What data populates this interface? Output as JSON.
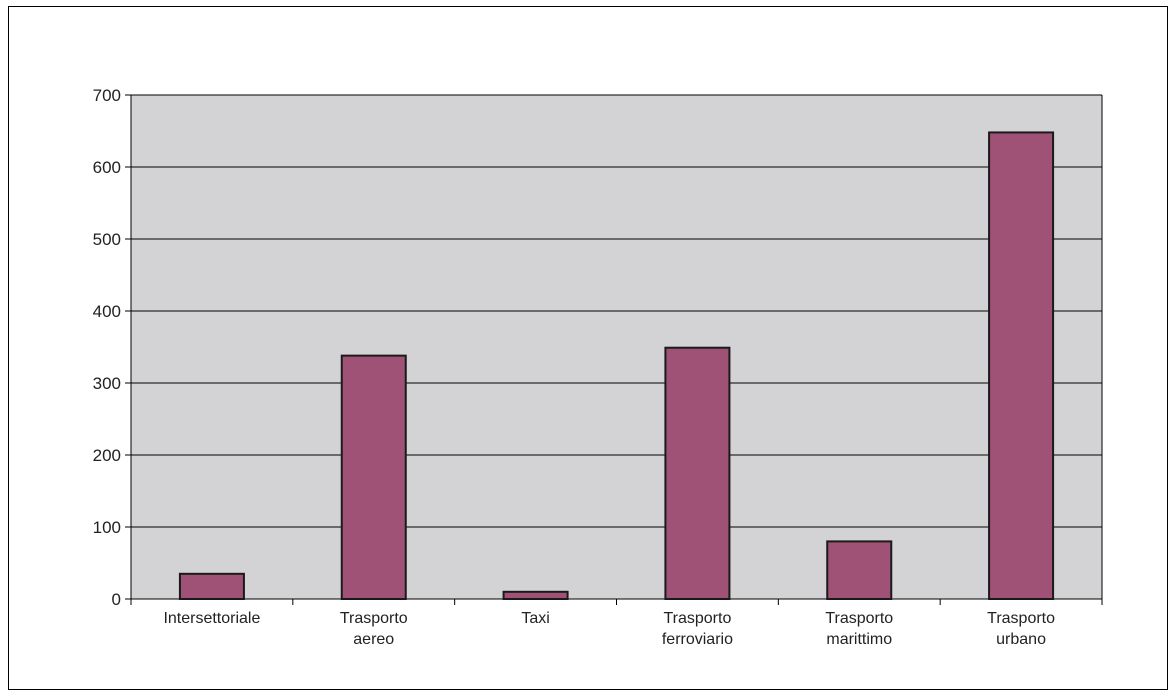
{
  "chart_data": {
    "type": "bar",
    "title": "",
    "xlabel": "",
    "ylabel": "",
    "categories": [
      "Intersettoriale",
      "Trasporto aereo",
      "Taxi",
      "Trasporto ferroviario",
      "Trasporto marittimo",
      "Trasporto urbano"
    ],
    "category_lines": [
      [
        "Intersettoriale"
      ],
      [
        "Trasporto",
        "aereo"
      ],
      [
        "Taxi"
      ],
      [
        "Trasporto",
        "ferroviario"
      ],
      [
        "Trasporto",
        "marittimo"
      ],
      [
        "Trasporto",
        "urbano"
      ]
    ],
    "values": [
      35,
      338,
      10,
      349,
      80,
      648
    ],
    "ylim": [
      0,
      700
    ],
    "yticks": [
      0,
      100,
      200,
      300,
      400,
      500,
      600,
      700
    ],
    "grid": true,
    "legend": "none",
    "colors": {
      "bar": "#a05276",
      "bar_stroke": "#1a1a1a",
      "plot_bg": "#d3d3d5",
      "grid": "#000000"
    }
  }
}
